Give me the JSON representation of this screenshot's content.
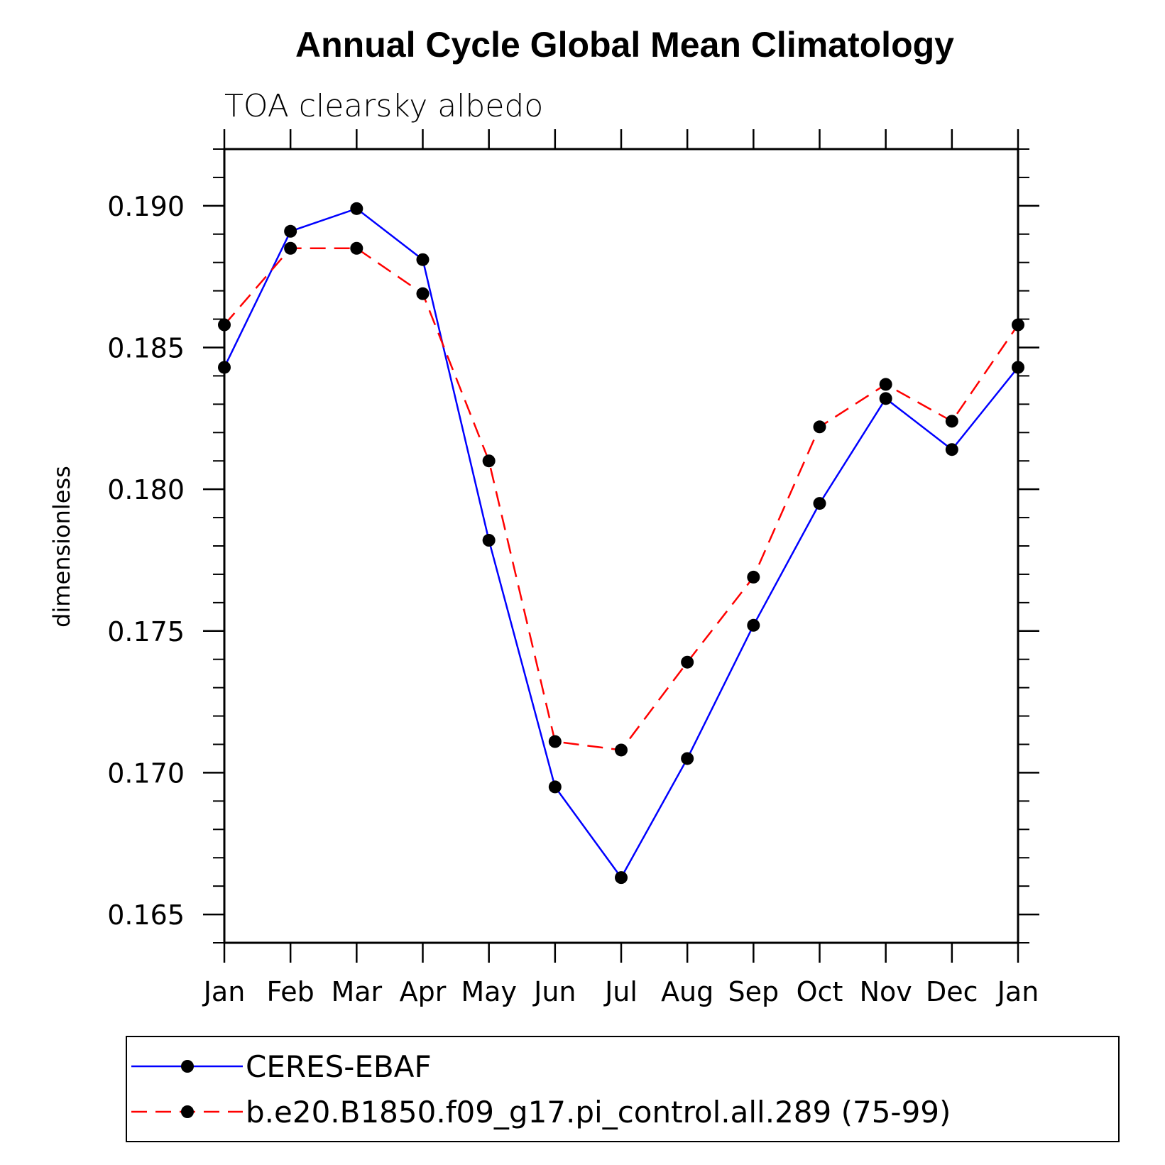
{
  "chart_data": {
    "type": "line",
    "title": "Annual Cycle Global Mean Climatology",
    "subtitle": "TOA clearsky albedo",
    "xlabel": "",
    "ylabel": "dimensionless",
    "categories": [
      "Jan",
      "Feb",
      "Mar",
      "Apr",
      "May",
      "Jun",
      "Jul",
      "Aug",
      "Sep",
      "Oct",
      "Nov",
      "Dec",
      "Jan"
    ],
    "ylim": [
      0.164,
      0.192
    ],
    "yticks": [
      0.165,
      0.17,
      0.175,
      0.18,
      0.185,
      0.19
    ],
    "ytick_labels": [
      "0.165",
      "0.170",
      "0.175",
      "0.180",
      "0.185",
      "0.190"
    ],
    "series": [
      {
        "name": "CERES-EBAF",
        "color": "#0000ff",
        "dash": "solid",
        "values": [
          0.1843,
          0.1891,
          0.1899,
          0.1881,
          0.1782,
          0.1695,
          0.1663,
          0.1705,
          0.1752,
          0.1795,
          0.1832,
          0.1814,
          0.1843
        ]
      },
      {
        "name": "b.e20.B1850.f09_g17.pi_control.all.289 (75-99)",
        "color": "#ff0000",
        "dash": "dashed",
        "values": [
          0.1858,
          0.1885,
          0.1885,
          0.1869,
          0.181,
          0.1711,
          0.1708,
          0.1739,
          0.1769,
          0.1822,
          0.1837,
          0.1824,
          0.1858
        ]
      }
    ],
    "legend_position": "bottom",
    "marker_color": "#000000",
    "grid": false
  }
}
